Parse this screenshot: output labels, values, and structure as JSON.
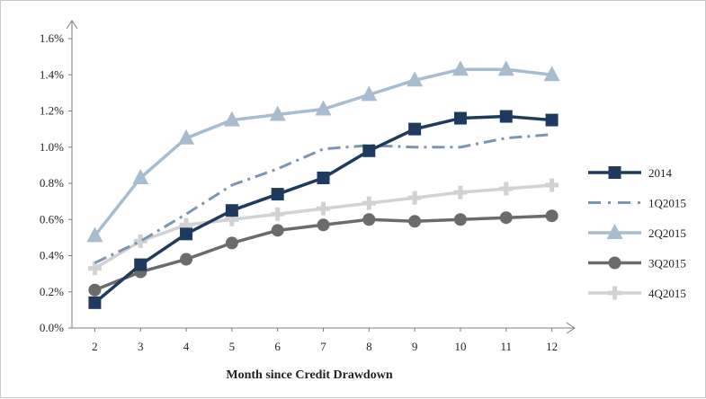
{
  "chart_data": {
    "type": "line",
    "title": "",
    "xlabel": "Month since Credit Drawdown",
    "ylabel": "",
    "x": [
      2,
      3,
      4,
      5,
      6,
      7,
      8,
      9,
      10,
      11,
      12
    ],
    "xlim": [
      1.5,
      12.5
    ],
    "ylim": [
      0.0,
      1.6
    ],
    "y_tick_labels": [
      "0.0%",
      "0.2%",
      "0.4%",
      "0.6%",
      "0.8%",
      "1.0%",
      "1.2%",
      "1.4%",
      "1.6%"
    ],
    "y_unit": "%",
    "grid": false,
    "legend_position": "right",
    "series": [
      {
        "name": "2014",
        "color": "#1f3a5f",
        "line_style": "solid",
        "marker": "square",
        "values": [
          0.14,
          0.35,
          0.52,
          0.65,
          0.74,
          0.83,
          0.98,
          1.1,
          1.16,
          1.17,
          1.15
        ]
      },
      {
        "name": "1Q2015",
        "color": "#7b96b4",
        "line_style": "dash-dot",
        "marker": "none",
        "values": [
          0.36,
          0.48,
          0.63,
          0.79,
          0.88,
          0.99,
          1.01,
          1.0,
          1.0,
          1.05,
          1.07
        ]
      },
      {
        "name": "2Q2015",
        "color": "#a8bccf",
        "line_style": "solid",
        "marker": "triangle",
        "values": [
          0.51,
          0.83,
          1.05,
          1.15,
          1.18,
          1.21,
          1.29,
          1.37,
          1.43,
          1.43,
          1.4
        ]
      },
      {
        "name": "3Q2015",
        "color": "#6b6b6b",
        "line_style": "solid",
        "marker": "circle",
        "values": [
          0.21,
          0.31,
          0.38,
          0.47,
          0.54,
          0.57,
          0.6,
          0.59,
          0.6,
          0.61,
          0.62
        ]
      },
      {
        "name": "4Q2015",
        "color": "#d2d2d2",
        "line_style": "solid",
        "marker": "cross",
        "values": [
          0.33,
          0.48,
          0.57,
          0.6,
          0.63,
          0.66,
          0.69,
          0.72,
          0.75,
          0.77,
          0.79
        ]
      }
    ]
  }
}
